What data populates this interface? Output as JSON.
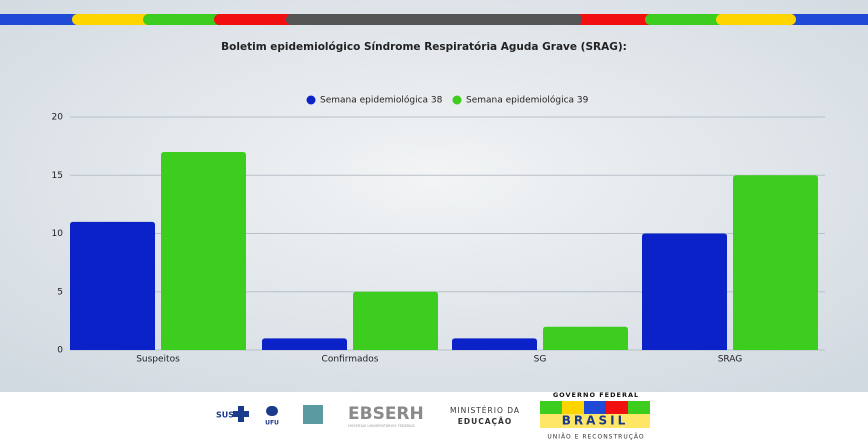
{
  "chart_data": {
    "type": "bar",
    "title": "Boletim epidemiológico Síndrome Respiratória Aguda Grave (SRAG):",
    "categories": [
      "Suspeitos",
      "Confirmados",
      "SG",
      "SRAG"
    ],
    "series": [
      {
        "name": "Semana epidemiológica 38",
        "color": "#0a22c8",
        "values": [
          11,
          1,
          1,
          10
        ]
      },
      {
        "name": "Semana epidemiológica 39",
        "color": "#3ccd1e",
        "values": [
          17,
          5,
          2,
          15
        ]
      }
    ],
    "ylim": [
      0,
      20
    ],
    "yticks": [
      0,
      5,
      10,
      15,
      20
    ],
    "grid": true,
    "legend": "top"
  },
  "footer": {
    "sus": "SUS",
    "ufu": "UFU",
    "ebserh": "EBSERH",
    "ebserh_sub": "HOSPITAIS UNIVERSITÁRIOS FEDERAIS",
    "ministry_1": "MINISTÉRIO DA",
    "ministry_2": "EDUCAÇÃO",
    "gov": "GOVERNO FEDERAL",
    "brasil": "BRASIL",
    "motto": "UNIÃO E RECONSTRUÇÃO"
  }
}
